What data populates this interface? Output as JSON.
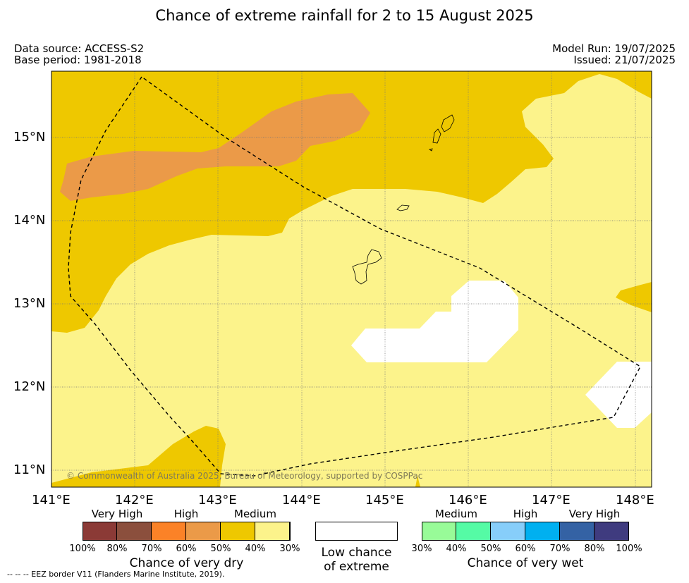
{
  "title": "Chance of extreme rainfall for 2 to 15 August 2025",
  "data_source": "Data source: ACCESS-S2",
  "base_period": "Base period: 1981-2018",
  "model_run": "Model Run: 19/07/2025",
  "issued": "Issued: 21/07/2025",
  "copyright": "© Commonwealth of Australia 2025, Bureau of Meteorology, supported by COSPPac",
  "footnote": "--  --  -- EEZ border V11 (Flanders Marine Institute, 2019).",
  "map": {
    "lon_range": [
      141.0,
      148.2
    ],
    "lat_range": [
      10.8,
      15.8
    ],
    "x_ticks": [
      "141°E",
      "142°E",
      "143°E",
      "144°E",
      "145°E",
      "146°E",
      "147°E",
      "148°E"
    ],
    "y_ticks": [
      "15°N",
      "14°N",
      "13°N",
      "12°N",
      "11°N"
    ],
    "grid": true,
    "colors": {
      "dry_30_40": "#fcf38b",
      "dry_40_50": "#eec800",
      "dry_50_60": "#eb9a48",
      "low_chance": "#ffffff"
    },
    "regions": [
      {
        "name": "dry-medium-30-40",
        "category": "Chance of very dry 30%-40%"
      },
      {
        "name": "dry-medium-40-50",
        "category": "Chance of very dry 40%-50%"
      },
      {
        "name": "dry-high-50-60",
        "category": "Chance of very dry 50%-60%"
      },
      {
        "name": "low-chance",
        "category": "Low chance of extreme"
      }
    ]
  },
  "legend": {
    "dry": {
      "title": "Chance of very dry",
      "categories": [
        "Very High",
        "High",
        "Medium"
      ],
      "ticks": [
        "100%",
        "80%",
        "70%",
        "60%",
        "50%",
        "40%",
        "30%"
      ],
      "colors": [
        "#8b3a36",
        "#8b4f3d",
        "#fb8227",
        "#eb9a48",
        "#eec800",
        "#fcf38b"
      ]
    },
    "low": {
      "title_line1": "Low chance",
      "title_line2": "of extreme",
      "color": "#ffffff"
    },
    "wet": {
      "title": "Chance of very wet",
      "categories": [
        "Medium",
        "High",
        "Very High"
      ],
      "ticks": [
        "30%",
        "40%",
        "50%",
        "60%",
        "70%",
        "80%",
        "100%"
      ],
      "colors": [
        "#98fb98",
        "#55fba5",
        "#87cefa",
        "#00b0f0",
        "#3462a4",
        "#3f3b7f"
      ]
    }
  }
}
